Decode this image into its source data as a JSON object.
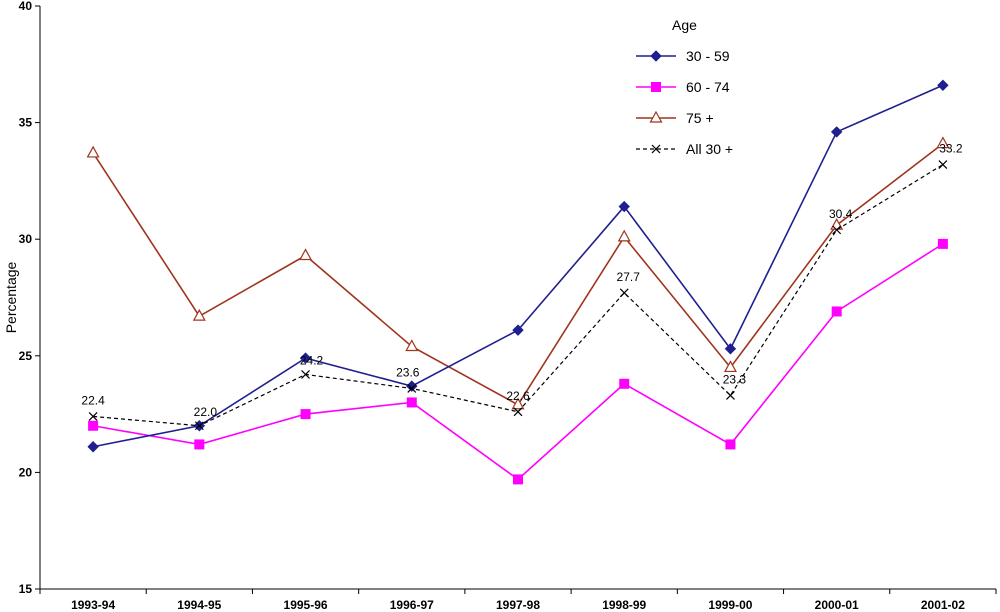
{
  "chart_data": {
    "type": "line",
    "title": "",
    "xlabel": "",
    "ylabel": "Percentage",
    "ylim": [
      15,
      40
    ],
    "yticks": [
      15,
      20,
      25,
      30,
      35,
      40
    ],
    "categories": [
      "1993-94",
      "1994-95",
      "1995-96",
      "1996-97",
      "1997-98",
      "1998-99",
      "1999-00",
      "2000-01",
      "2001-02"
    ],
    "legend_title": "Age",
    "legend_position": "top-right",
    "series": [
      {
        "name": "30 - 59",
        "color": "#1f1f8f",
        "marker": "diamond",
        "dash": "solid",
        "values": [
          21.1,
          22.0,
          24.9,
          23.7,
          26.1,
          31.4,
          25.3,
          34.6,
          36.6
        ]
      },
      {
        "name": "60 - 74",
        "color": "#ff00ff",
        "marker": "square",
        "dash": "solid",
        "values": [
          22.0,
          21.2,
          22.5,
          23.0,
          19.7,
          23.8,
          21.2,
          26.9,
          29.8
        ]
      },
      {
        "name": "75 +",
        "color": "#a0341c",
        "marker": "triangle-open",
        "dash": "solid",
        "values": [
          33.7,
          26.7,
          29.3,
          25.4,
          22.9,
          30.1,
          24.5,
          30.6,
          34.1
        ]
      },
      {
        "name": "All 30 +",
        "color": "#000000",
        "marker": "x",
        "dash": "dashed",
        "values": [
          22.4,
          22.0,
          24.2,
          23.6,
          22.6,
          27.7,
          23.3,
          30.4,
          33.2
        ],
        "labels": [
          "22.4",
          "22.0",
          "24.2",
          "23.6",
          "22.6",
          "27.7",
          "23.3",
          "30.4",
          "33.2"
        ]
      }
    ]
  }
}
